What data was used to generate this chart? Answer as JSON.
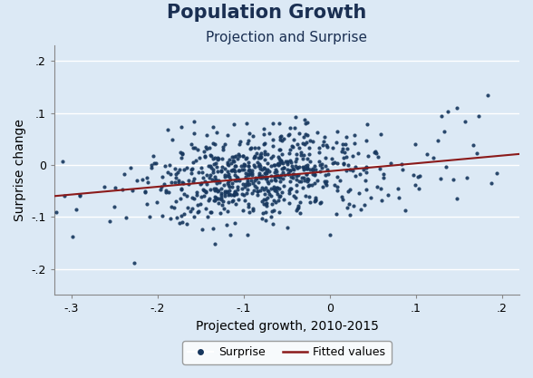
{
  "title": "Population Growth",
  "subtitle": "Projection and Surprise",
  "xlabel": "Projected growth, 2010-2015",
  "ylabel": "Surprise change",
  "xlim": [
    -0.32,
    0.22
  ],
  "ylim": [
    -0.25,
    0.23
  ],
  "xticks": [
    -0.3,
    -0.2,
    -0.1,
    0.0,
    0.1,
    0.2
  ],
  "yticks": [
    -0.2,
    -0.1,
    0.0,
    0.1,
    0.2
  ],
  "xtick_labels": [
    "-.3",
    "-.2",
    "-.1",
    "0",
    ".1",
    ".2"
  ],
  "ytick_labels": [
    "-.2",
    "-.1",
    "0",
    ".1",
    ".2"
  ],
  "dot_color": "#17375e",
  "dot_size": 9,
  "dot_alpha": 0.9,
  "line_color": "#8b1a1a",
  "line_width": 1.5,
  "fit_x_start": -0.32,
  "fit_x_end": 0.22,
  "fit_slope": 0.15,
  "fit_intercept": -0.012,
  "background_color": "#dce9f5",
  "plot_bg_color": "#dce9f5",
  "grid_color": "#ffffff",
  "title_color": "#1a2f52",
  "title_fontsize": 15,
  "subtitle_fontsize": 11,
  "axis_label_fontsize": 10,
  "tick_fontsize": 9,
  "legend_dot_color": "#17375e",
  "legend_line_color": "#8b1a1a",
  "n_points": 650,
  "seed": 42
}
